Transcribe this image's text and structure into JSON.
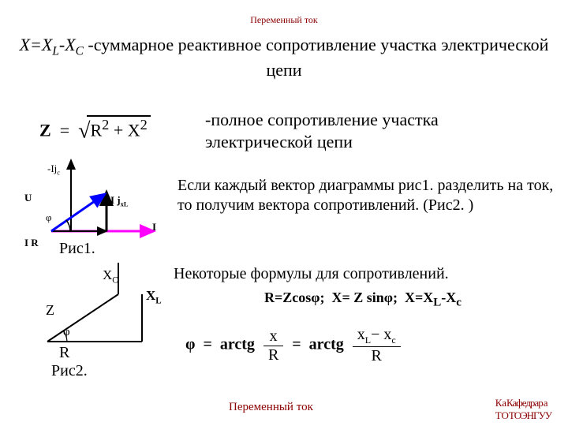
{
  "title": "Переменный ток",
  "headline_html": "<i>X=X<sub>L</sub>-X<sub>C</sub></i> -суммарное реактивное сопротивление участка электрической цепи",
  "full_resistance": "-полное сопротивление участка электрической цепи",
  "z_formula_html": "<b>Z</b> &nbsp;=&nbsp; <span class='sqrt'>√</span><span class='radical'>R<sup>2</sup> + X<sup>2</sup></span>",
  "textblock": "Если каждый вектор диаграммы рис1. разделить на ток, то получим вектора сопротивлений. (Рис2. )",
  "some_formulas_title": "Некоторые формулы для сопротивлений.",
  "some_formulas_line_html": "R=Zcosφ;&nbsp; X= Z sinφ;&nbsp; X=X<sub>L</sub>-X<sub>c</sub>",
  "phi_formula_pre": "φ &nbsp;=&nbsp; arctg",
  "phi_formula_eq": "=&nbsp; arctg",
  "frac1": {
    "num": "x",
    "den": "R"
  },
  "frac2": {
    "num_html": "x<sub>L</sub>− x<sub>c</sub>",
    "den": "R"
  },
  "fig1_caption": "Рис1.",
  "fig2_caption_html": "&nbsp;&nbsp;R<br>Рис2.",
  "footer_ac": "Переменный ток",
  "footer_dept_html": "Ка<span style='letter-spacing:-1px'>Кафедра</span>ра<br>ТО<span style='letter-spacing:-1px'>ТОЭНГУ</span>У",
  "fig1": {
    "labels": {
      "mIjXc": "-Ij<sub>с</sub>",
      "U": "U",
      "IjXL": "I j<sub>xL</sub>",
      "I": "I",
      "IR": "I R",
      "phi": "φ"
    },
    "colors": {
      "axis": "#000000",
      "U": "#0000ff",
      "IjXL_up": "#000000",
      "IjXL_down": "#000000",
      "I": "#ff00ff",
      "IR": "#000000"
    }
  },
  "fig2": {
    "labels": {
      "Xc": "X<sub>C</sub>",
      "Xl": "X<sub>L</sub>",
      "Z": "Z",
      "phi": "φ"
    },
    "colors": {
      "line": "#000000"
    }
  }
}
